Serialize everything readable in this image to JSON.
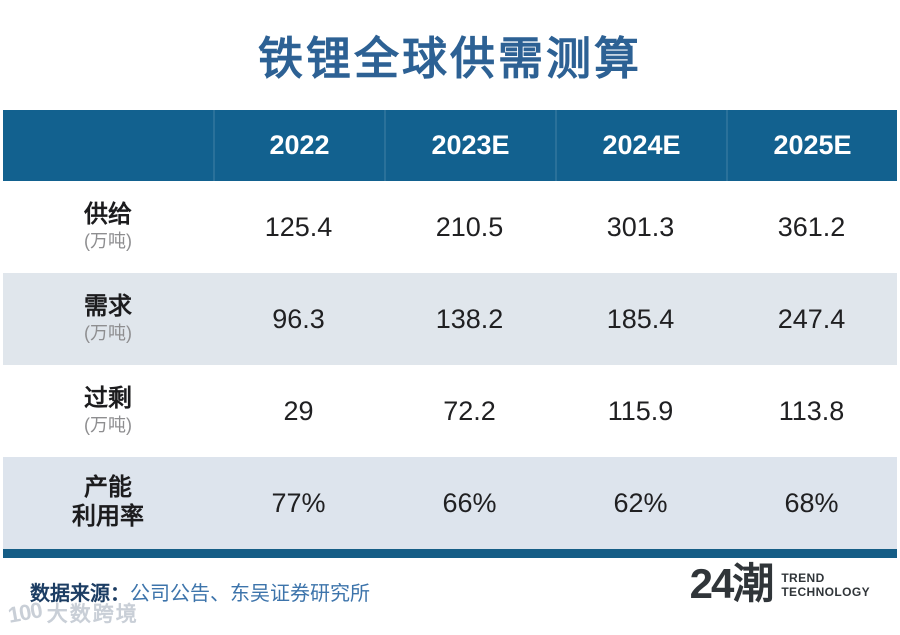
{
  "title": "铁锂全球供需测算",
  "colors": {
    "title_blue": "#2d6194",
    "header_bg": "#12618f",
    "row_alt_bg": "#e0e6ec",
    "bottom_bar": "#155d86",
    "source_label": "#1c3d63",
    "source_text": "#3d74ab",
    "brand_dark": "#303539",
    "watermark_gray": "#c9cfd7"
  },
  "table": {
    "columns": [
      "2022",
      "2023E",
      "2024E",
      "2025E"
    ],
    "rows": [
      {
        "label": "供给",
        "sub": "(万吨)",
        "values": [
          "125.4",
          "210.5",
          "301.3",
          "361.2"
        ]
      },
      {
        "label": "需求",
        "sub": "(万吨)",
        "values": [
          "96.3",
          "138.2",
          "185.4",
          "247.4"
        ]
      },
      {
        "label": "过剩",
        "sub": "(万吨)",
        "values": [
          "29",
          "72.2",
          "115.9",
          "113.8"
        ]
      },
      {
        "label": "产能",
        "sub": "利用率",
        "values": [
          "77%",
          "66%",
          "62%",
          "68%"
        ]
      }
    ]
  },
  "chart_data": {
    "type": "table",
    "title": "铁锂全球供需测算",
    "categories": [
      "2022",
      "2023E",
      "2024E",
      "2025E"
    ],
    "series": [
      {
        "name": "供给(万吨)",
        "values": [
          125.4,
          210.5,
          301.3,
          361.2
        ]
      },
      {
        "name": "需求(万吨)",
        "values": [
          96.3,
          138.2,
          185.4,
          247.4
        ]
      },
      {
        "name": "过剩(万吨)",
        "values": [
          29,
          72.2,
          115.9,
          113.8
        ]
      },
      {
        "name": "产能利用率",
        "values": [
          "77%",
          "66%",
          "62%",
          "68%"
        ]
      }
    ]
  },
  "footer": {
    "source_label": "数据来源：",
    "source_text": "公司公告、东吴证券研究所"
  },
  "brand": {
    "mark": "24潮",
    "line1": "TREND",
    "line2": "TECHNOLOGY"
  },
  "watermark": {
    "icon_text": "100",
    "text": "大数跨境"
  }
}
